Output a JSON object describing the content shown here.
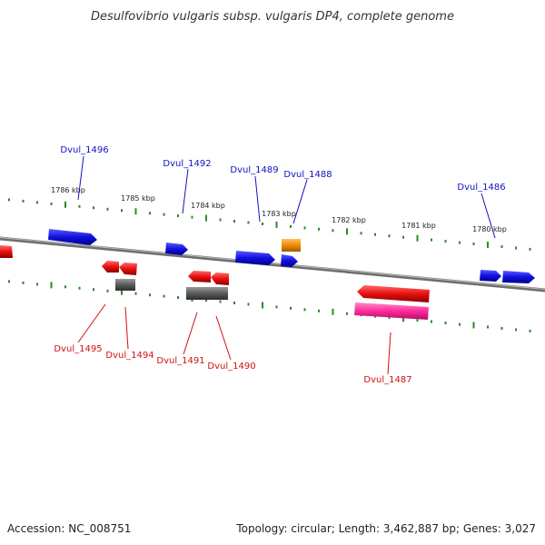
{
  "title": "Desulfovibrio vulgaris subsp. vulgaris DP4, complete genome",
  "footer": {
    "accession": "Accession: NC_008751",
    "topology": "Topology: circular; Length: 3,462,887 bp; Genes: 3,027"
  },
  "colors": {
    "plus_gene": "#1010e0",
    "minus_gene": "#e01010",
    "pseudo_gene": "#555555",
    "orange_gene": "#f08c00",
    "pink_gene": "#ff2a9a",
    "backbone": "#888888",
    "tick": "#2a8a2a",
    "plus_label": "#1010c0",
    "minus_label": "#d01010"
  },
  "kbp_labels": [
    "1786 kbp",
    "1785 kbp",
    "1784 kbp",
    "1783 kbp",
    "1782 kbp",
    "1781 kbp",
    "1780 kbp"
  ],
  "plus_strand_labels": [
    "Dvul_1496",
    "Dvul_1492",
    "Dvul_1489",
    "Dvul_1488",
    "Dvul_1486"
  ],
  "minus_strand_labels": [
    "Dvul_1495",
    "Dvul_1494",
    "Dvul_1491",
    "Dvul_1490",
    "Dvul_1487"
  ]
}
